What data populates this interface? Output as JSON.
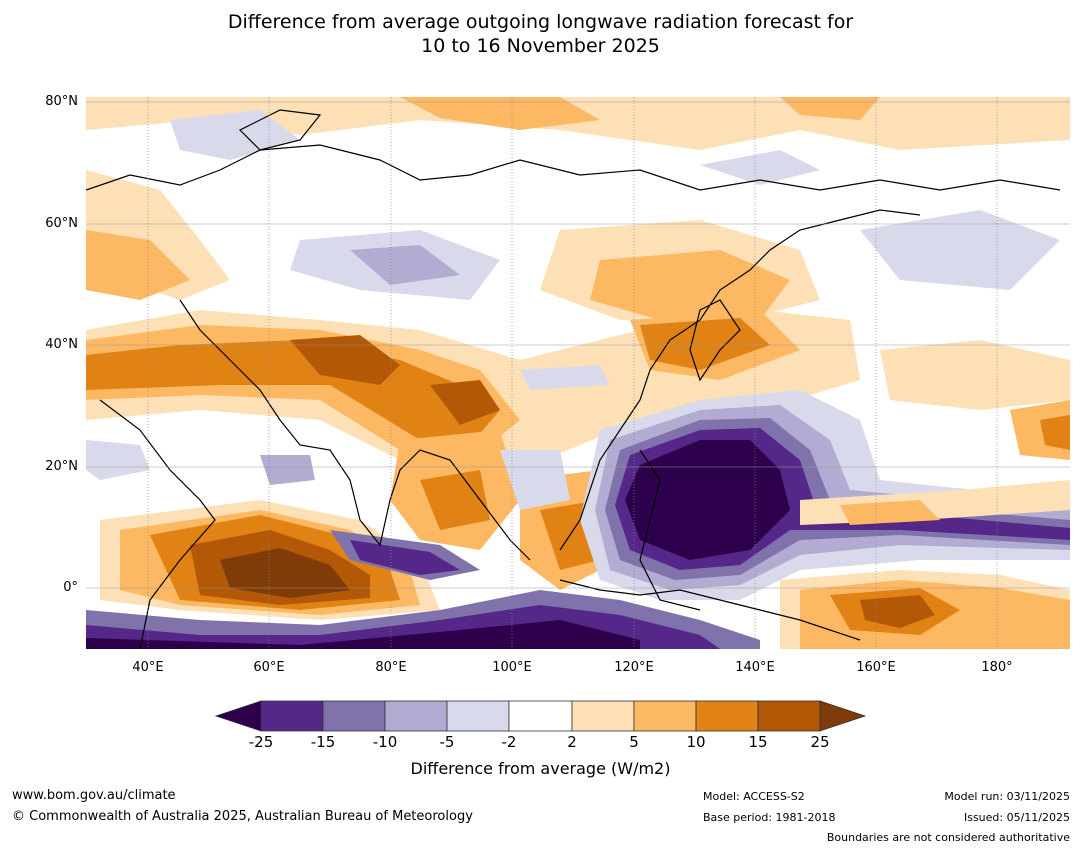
{
  "title_line1": "Difference from average outgoing longwave radiation forecast for",
  "title_line2": "10 to 16 November 2025",
  "lat_labels": [
    "80°N",
    "60°N",
    "40°N",
    "20°N",
    "0°"
  ],
  "lon_labels": [
    "40°E",
    "60°E",
    "80°E",
    "100°E",
    "120°E",
    "140°E",
    "160°E",
    "180°"
  ],
  "colorbar": {
    "ticks": [
      "-25",
      "-15",
      "-10",
      "-5",
      "-2",
      "2",
      "5",
      "10",
      "15",
      "25"
    ],
    "colors": [
      "#2d004b",
      "#542788",
      "#8073ac",
      "#b2abd2",
      "#d8daeb",
      "#ffffff",
      "#fee0b6",
      "#fdb863",
      "#e08214",
      "#b35806",
      "#7f3b08"
    ],
    "title": "Difference from average (W/m2)"
  },
  "footer": {
    "website": "www.bom.gov.au/climate",
    "copyright": "© Commonwealth of Australia 2025, Australian Bureau of Meteorology",
    "model": "Model: ACCESS-S2",
    "base_period": "Base period: 1981-2018",
    "model_run": "Model run: 03/11/2025",
    "issued": "Issued: 05/11/2025",
    "disclaimer": "Boundaries are not considered authoritative"
  }
}
